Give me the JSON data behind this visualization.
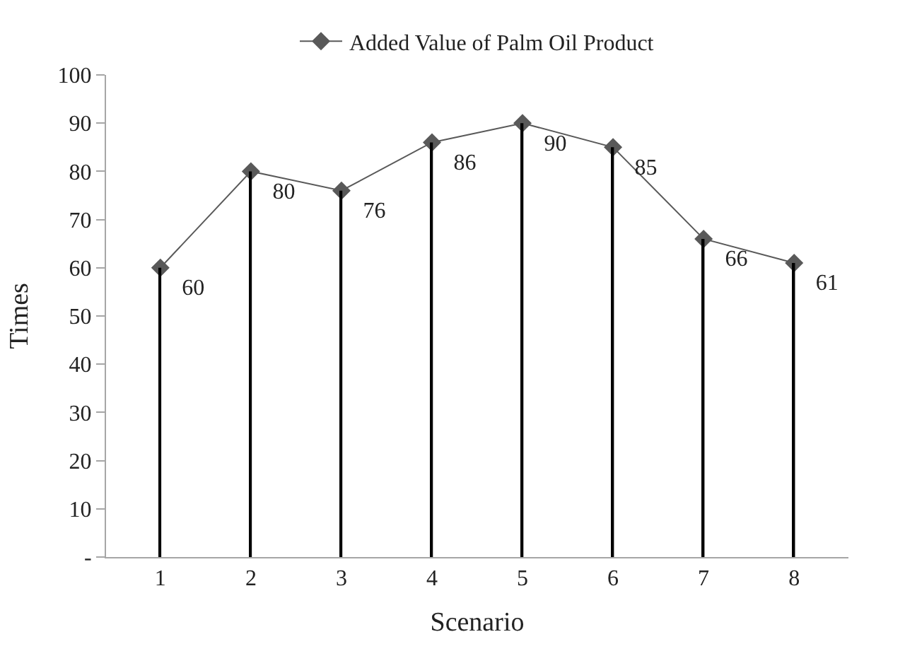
{
  "chart_data": {
    "type": "line",
    "xlabel": "Scenario",
    "ylabel": "Times",
    "categories": [
      "1",
      "2",
      "3",
      "4",
      "5",
      "6",
      "7",
      "8"
    ],
    "series": [
      {
        "type": "bar",
        "color": "#000000",
        "values": [
          60,
          80,
          76,
          86,
          90,
          85,
          66,
          61
        ]
      },
      {
        "name": "Added Value of Palm Oil Product",
        "color": "#595959",
        "marker": "diamond",
        "values": [
          60,
          80,
          76,
          86,
          90,
          85,
          66,
          61
        ],
        "value_labels": [
          "60",
          "80",
          "76",
          "86",
          "90",
          "85",
          "66",
          "61"
        ]
      }
    ],
    "ylim": [
      0,
      100
    ],
    "yticks": [
      {
        "value": 0,
        "label": "-"
      },
      10,
      20,
      30,
      40,
      50,
      60,
      70,
      80,
      90,
      100
    ],
    "legend": "top"
  }
}
